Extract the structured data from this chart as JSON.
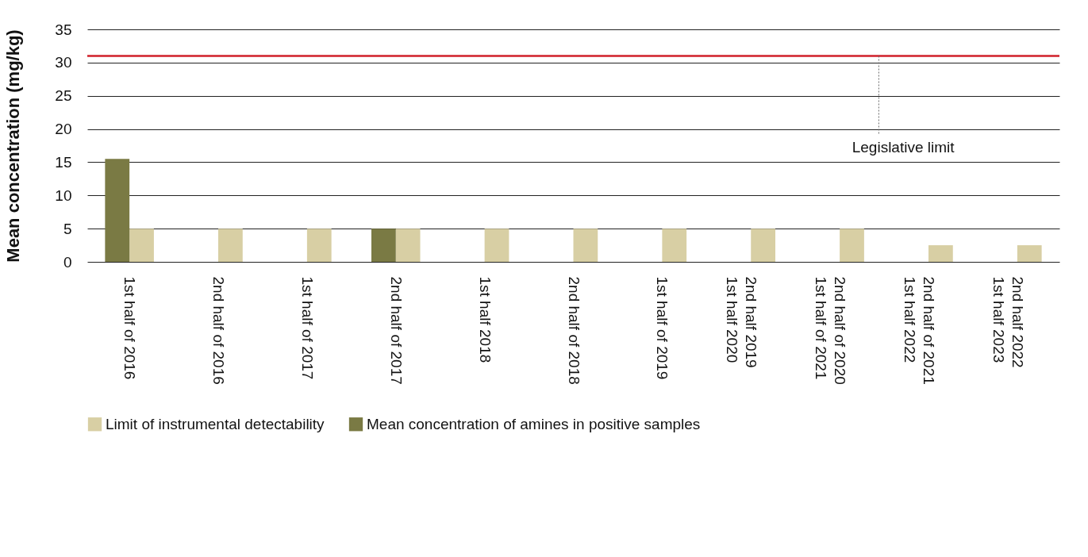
{
  "chart_data": {
    "type": "bar",
    "ylabel": "Mean concentration (mg/kg)",
    "categories": [
      "1st half of 2016",
      "2nd half of 2016",
      "1st half of 2017",
      "2nd half of 2017",
      "1st half 2018",
      "2nd half of 2018",
      "1st half of 2019",
      "2nd half 2019\n1st half 2020",
      "2nd half of 2020\n1st half of 2021",
      "2nd half of 2021\n1st half 2022",
      "2nd half 2022\n1st half 2023"
    ],
    "series": [
      {
        "name": "Limit of instrumental detectability",
        "color": "#d8cfa4",
        "values": [
          5,
          5,
          5,
          5,
          5,
          5,
          5,
          5,
          5,
          2.5,
          2.5
        ]
      },
      {
        "name": "Mean concentration of amines in positive samples",
        "color": "#7a7a44",
        "values": [
          15.5,
          null,
          null,
          5,
          null,
          null,
          null,
          null,
          null,
          null,
          null
        ]
      }
    ],
    "ylim": [
      0,
      35
    ],
    "yticks": [
      0,
      5,
      10,
      15,
      20,
      25,
      30,
      35
    ],
    "grid": "y",
    "legend": "bottom",
    "ref_lines": [
      {
        "axis": "y",
        "value": 31,
        "label": "Legislative limit",
        "color": "#d0202a"
      }
    ]
  }
}
